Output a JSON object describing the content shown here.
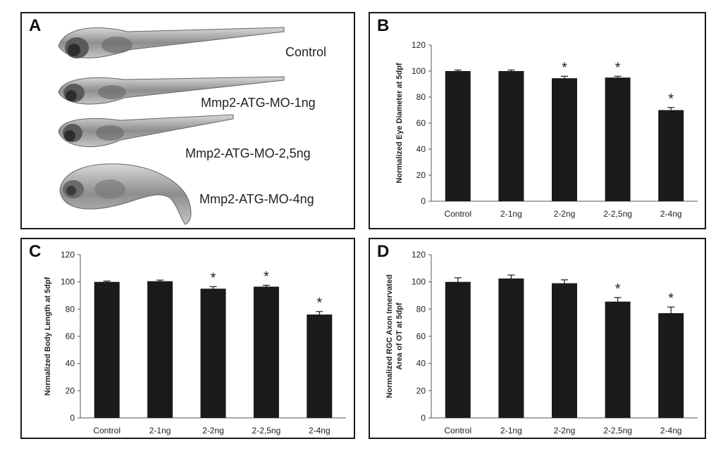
{
  "panel_a": {
    "letter": "A",
    "conditions": [
      "Control",
      "Mmp2-ATG-MO-1ng",
      "Mmp2-ATG-MO-2,5ng",
      "Mmp2-ATG-MO-4ng"
    ]
  },
  "chart_data": [
    {
      "panel": "B",
      "type": "bar",
      "ylabel": "Normalized Eye Diameter at 5dpf",
      "categories": [
        "Control",
        "2-1ng",
        "2-2ng",
        "2-2,5ng",
        "2-4ng"
      ],
      "values": [
        100,
        100,
        94.5,
        95,
        70
      ],
      "errors": [
        0.8,
        0.8,
        1.5,
        1,
        2
      ],
      "significance": [
        "",
        "",
        "*",
        "*",
        "*"
      ],
      "ylim": [
        0,
        120
      ],
      "yticks": [
        0,
        20,
        40,
        60,
        80,
        100,
        120
      ]
    },
    {
      "panel": "C",
      "type": "bar",
      "ylabel": "Normalized Body Length at 5dpf",
      "categories": [
        "Control",
        "2-1ng",
        "2-2ng",
        "2-2,5ng",
        "2-4ng"
      ],
      "values": [
        100,
        100.5,
        95,
        96.5,
        76
      ],
      "errors": [
        0.6,
        0.8,
        1.5,
        1,
        2.2
      ],
      "significance": [
        "",
        "",
        "*",
        "*",
        "*"
      ],
      "ylim": [
        0,
        120
      ],
      "yticks": [
        0,
        20,
        40,
        60,
        80,
        100,
        120
      ]
    },
    {
      "panel": "D",
      "type": "bar",
      "ylabel": "Normalized RGC Axon Innervated Area of OT at 5dpf",
      "categories": [
        "Control",
        "2-1ng",
        "2-2ng",
        "2-2,5ng",
        "2-4ng"
      ],
      "values": [
        100,
        102.5,
        99,
        85.5,
        77
      ],
      "errors": [
        3,
        2.5,
        2.5,
        3,
        4.5
      ],
      "significance": [
        "",
        "",
        "",
        "*",
        "*"
      ],
      "ylim": [
        0,
        120
      ],
      "yticks": [
        0,
        20,
        40,
        60,
        80,
        100,
        120
      ]
    }
  ],
  "colors": {
    "bar": "#1a1a1a",
    "axis": "#555555",
    "text": "#222222",
    "fish": "#9a9a9a"
  }
}
